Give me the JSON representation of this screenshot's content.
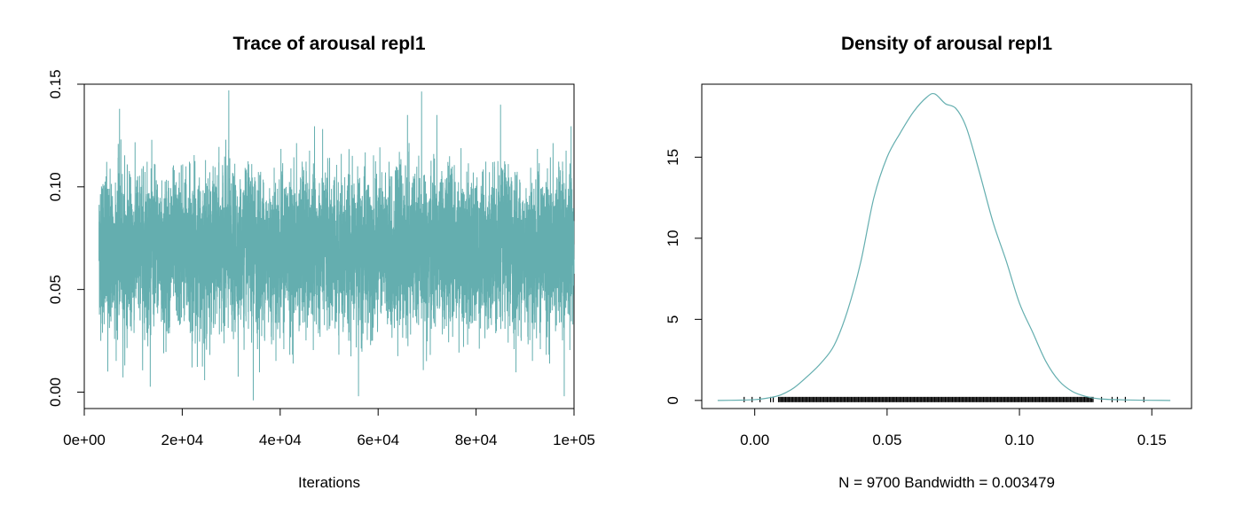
{
  "colors": {
    "series": "#64aeaf",
    "axis": "#000000",
    "background": "#ffffff"
  },
  "chart_data": [
    {
      "type": "line",
      "title": "Trace of arousal repl1",
      "xlabel": "Iterations",
      "ylabel": "",
      "xlim": [
        0,
        100000
      ],
      "ylim": [
        -0.008,
        0.15
      ],
      "xticks": [
        0,
        20000,
        40000,
        60000,
        80000,
        100000
      ],
      "xtick_labels": [
        "0e+00",
        "2e+04",
        "4e+04",
        "6e+04",
        "8e+04",
        "1e+05"
      ],
      "yticks": [
        0.0,
        0.05,
        0.1,
        0.15
      ],
      "ytick_labels": [
        "0.00",
        "0.05",
        "0.10",
        "0.15"
      ],
      "series": [
        {
          "iterations_range": [
            3000,
            100000
          ],
          "num_samples": 9700,
          "center": 0.069,
          "typical_band": [
            0.037,
            0.107
          ],
          "extremes": [
            {
              "x": 7200,
              "y": 0.138
            },
            {
              "x": 29500,
              "y": 0.147
            },
            {
              "x": 34500,
              "y": -0.004
            },
            {
              "x": 56000,
              "y": -0.002
            },
            {
              "x": 72000,
              "y": 0.135
            },
            {
              "x": 85000,
              "y": 0.14
            },
            {
              "x": 98000,
              "y": -0.002
            },
            {
              "x": 4800,
              "y": 0.01
            },
            {
              "x": 22000,
              "y": 0.012
            },
            {
              "x": 66000,
              "y": 0.135
            }
          ]
        }
      ],
      "grid": false,
      "legend": "none"
    },
    {
      "type": "line",
      "title": "Density of arousal repl1",
      "xlabel": "N = 9700   Bandwidth = 0.003479",
      "ylabel": "",
      "xlim": [
        -0.02,
        0.165
      ],
      "ylim": [
        -0.5,
        19.5
      ],
      "xticks": [
        0.0,
        0.05,
        0.1,
        0.15
      ],
      "xtick_labels": [
        "0.00",
        "0.05",
        "0.10",
        "0.15"
      ],
      "yticks": [
        0,
        5,
        10,
        15
      ],
      "ytick_labels": [
        "0",
        "5",
        "10",
        "15"
      ],
      "series": [
        {
          "x": [
            -0.014,
            -0.005,
            0.0,
            0.005,
            0.01,
            0.015,
            0.02,
            0.025,
            0.03,
            0.035,
            0.04,
            0.045,
            0.05,
            0.055,
            0.06,
            0.065,
            0.068,
            0.072,
            0.076,
            0.08,
            0.085,
            0.09,
            0.095,
            0.1,
            0.105,
            0.11,
            0.115,
            0.12,
            0.125,
            0.13,
            0.14,
            0.157
          ],
          "y": [
            0.0,
            0.02,
            0.05,
            0.15,
            0.35,
            0.8,
            1.5,
            2.3,
            3.4,
            5.5,
            8.5,
            12.5,
            15.0,
            16.5,
            17.8,
            18.7,
            18.9,
            18.3,
            18.0,
            16.8,
            14.0,
            11.0,
            8.6,
            6.0,
            4.2,
            2.4,
            1.2,
            0.55,
            0.25,
            0.1,
            0.03,
            0.0
          ]
        }
      ],
      "rug": {
        "range": [
          0.009,
          0.128
        ],
        "outliers": [
          -0.004,
          -0.001,
          0.002,
          0.006,
          0.007,
          0.131,
          0.135,
          0.137,
          0.14,
          0.147
        ]
      },
      "grid": false,
      "legend": "none"
    }
  ]
}
